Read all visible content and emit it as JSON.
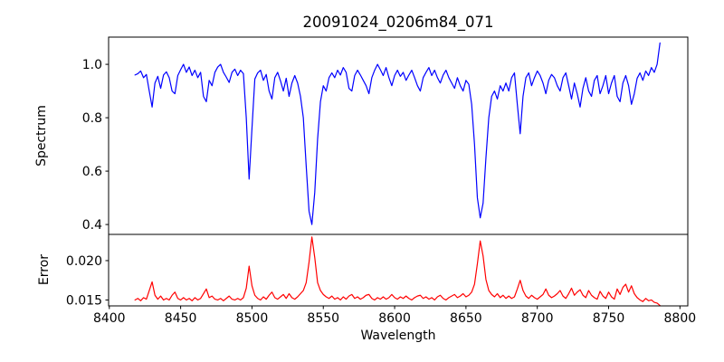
{
  "title": "20091024_0206m84_071",
  "xlabel": "Wavelength",
  "colors": {
    "spectrum_line": "#0000ff",
    "error_line": "#ff0000",
    "axis": "#000000",
    "background": "#ffffff"
  },
  "axes": {
    "xlim": [
      8399.5,
      8805.5
    ],
    "xticks": [
      8400,
      8450,
      8500,
      8550,
      8600,
      8650,
      8700,
      8750,
      8800
    ],
    "xtick_labels": [
      "8400",
      "8450",
      "8500",
      "8550",
      "8600",
      "8650",
      "8700",
      "8750",
      "8800"
    ],
    "top": {
      "ylabel": "Spectrum",
      "ylim": [
        0.363,
        1.102
      ],
      "yticks": [
        0.4,
        0.6,
        0.8,
        1.0
      ],
      "ytick_labels": [
        "0.4",
        "0.6",
        "0.8",
        "1.0"
      ]
    },
    "bottom": {
      "ylabel": "Error",
      "ylim": [
        0.01425,
        0.02333
      ],
      "yticks": [
        0.015,
        0.02
      ],
      "ytick_labels": [
        "0.015",
        "0.020"
      ]
    }
  },
  "chart_data": [
    {
      "type": "line",
      "name": "spectrum",
      "panel": "top",
      "color": "#0000ff",
      "x_start": 8418,
      "x_step": 2,
      "values": [
        0.96,
        0.965,
        0.975,
        0.95,
        0.962,
        0.9,
        0.84,
        0.93,
        0.955,
        0.91,
        0.96,
        0.972,
        0.95,
        0.9,
        0.89,
        0.958,
        0.98,
        1.0,
        0.97,
        0.99,
        0.958,
        0.978,
        0.95,
        0.97,
        0.88,
        0.86,
        0.94,
        0.92,
        0.97,
        0.99,
        1.0,
        0.97,
        0.952,
        0.932,
        0.97,
        0.982,
        0.958,
        0.978,
        0.965,
        0.8,
        0.57,
        0.76,
        0.945,
        0.968,
        0.978,
        0.94,
        0.962,
        0.9,
        0.87,
        0.95,
        0.97,
        0.938,
        0.9,
        0.948,
        0.88,
        0.93,
        0.958,
        0.93,
        0.88,
        0.8,
        0.62,
        0.45,
        0.4,
        0.52,
        0.72,
        0.86,
        0.92,
        0.9,
        0.95,
        0.968,
        0.95,
        0.978,
        0.96,
        0.988,
        0.97,
        0.91,
        0.9,
        0.958,
        0.978,
        0.96,
        0.94,
        0.92,
        0.89,
        0.95,
        0.978,
        1.0,
        0.98,
        0.958,
        0.988,
        0.95,
        0.92,
        0.958,
        0.978,
        0.955,
        0.97,
        0.94,
        0.96,
        0.978,
        0.95,
        0.92,
        0.9,
        0.95,
        0.97,
        0.988,
        0.958,
        0.978,
        0.95,
        0.93,
        0.96,
        0.978,
        0.95,
        0.93,
        0.91,
        0.95,
        0.92,
        0.9,
        0.94,
        0.925,
        0.85,
        0.7,
        0.5,
        0.425,
        0.48,
        0.65,
        0.8,
        0.88,
        0.9,
        0.87,
        0.92,
        0.9,
        0.93,
        0.9,
        0.95,
        0.968,
        0.85,
        0.74,
        0.88,
        0.95,
        0.968,
        0.92,
        0.95,
        0.975,
        0.958,
        0.93,
        0.89,
        0.94,
        0.962,
        0.95,
        0.92,
        0.9,
        0.95,
        0.968,
        0.92,
        0.87,
        0.93,
        0.89,
        0.84,
        0.91,
        0.95,
        0.9,
        0.88,
        0.94,
        0.958,
        0.89,
        0.92,
        0.958,
        0.89,
        0.93,
        0.958,
        0.88,
        0.86,
        0.93,
        0.958,
        0.92,
        0.85,
        0.89,
        0.948,
        0.968,
        0.94,
        0.975,
        0.958,
        0.988,
        0.97,
        1.0,
        1.08
      ]
    },
    {
      "type": "line",
      "name": "error",
      "panel": "bottom",
      "color": "#ff0000",
      "x_start": 8418,
      "x_step": 2,
      "values": [
        0.015,
        0.0152,
        0.0149,
        0.0153,
        0.0151,
        0.0162,
        0.0173,
        0.0156,
        0.0151,
        0.0155,
        0.015,
        0.0152,
        0.015,
        0.0156,
        0.016,
        0.0152,
        0.015,
        0.0153,
        0.015,
        0.0152,
        0.0149,
        0.0153,
        0.015,
        0.0152,
        0.0158,
        0.0164,
        0.0153,
        0.0155,
        0.0151,
        0.015,
        0.0152,
        0.0149,
        0.0152,
        0.0155,
        0.0151,
        0.015,
        0.0152,
        0.015,
        0.0153,
        0.0165,
        0.0193,
        0.0168,
        0.0156,
        0.0152,
        0.015,
        0.0154,
        0.0151,
        0.0156,
        0.016,
        0.0153,
        0.0151,
        0.0154,
        0.0157,
        0.0152,
        0.0158,
        0.0153,
        0.0151,
        0.0154,
        0.0158,
        0.0162,
        0.0172,
        0.0198,
        0.023,
        0.0204,
        0.0172,
        0.0162,
        0.0157,
        0.0154,
        0.0152,
        0.0155,
        0.0151,
        0.0153,
        0.015,
        0.0154,
        0.0151,
        0.0155,
        0.0157,
        0.0152,
        0.0154,
        0.0151,
        0.0153,
        0.0156,
        0.0157,
        0.0152,
        0.015,
        0.0153,
        0.0151,
        0.0154,
        0.0151,
        0.0153,
        0.0157,
        0.0153,
        0.0151,
        0.0154,
        0.0152,
        0.0155,
        0.0152,
        0.015,
        0.0153,
        0.0155,
        0.0156,
        0.0152,
        0.0154,
        0.0151,
        0.0153,
        0.015,
        0.0154,
        0.0156,
        0.0152,
        0.015,
        0.0153,
        0.0155,
        0.0157,
        0.0153,
        0.0155,
        0.0158,
        0.0154,
        0.0156,
        0.016,
        0.017,
        0.0196,
        0.0225,
        0.0206,
        0.0176,
        0.0162,
        0.0157,
        0.0154,
        0.0158,
        0.0153,
        0.0156,
        0.0152,
        0.0155,
        0.0152,
        0.0154,
        0.0164,
        0.0175,
        0.0162,
        0.0155,
        0.0152,
        0.0156,
        0.0153,
        0.0151,
        0.0154,
        0.0157,
        0.0164,
        0.0156,
        0.0153,
        0.0155,
        0.0158,
        0.0162,
        0.0155,
        0.0152,
        0.0158,
        0.0165,
        0.0156,
        0.016,
        0.0163,
        0.0156,
        0.0153,
        0.0162,
        0.0156,
        0.0153,
        0.0151,
        0.0161,
        0.0155,
        0.0152,
        0.016,
        0.0154,
        0.0151,
        0.0164,
        0.0157,
        0.0166,
        0.017,
        0.016,
        0.0168,
        0.0158,
        0.0153,
        0.015,
        0.0148,
        0.0152,
        0.0149,
        0.015,
        0.0147,
        0.0146,
        0.0143
      ]
    }
  ]
}
